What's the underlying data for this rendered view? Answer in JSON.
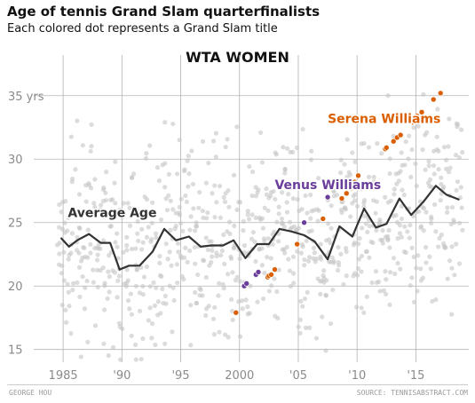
{
  "header": {
    "title": "Age of tennis Grand Slam quarterfinalists",
    "subtitle": "Each colored dot represents a Grand Slam title"
  },
  "footer": {
    "author": "GEORGE HOU",
    "source": "SOURCE: TENNISABSTRACT.COM"
  },
  "colors": {
    "background_dots": "#c4c4c4",
    "average_line": "#333333",
    "serena": "#d95f02",
    "venus": "#6a3d9a",
    "grid": "#b3b3b3"
  },
  "chart_data": {
    "type": "scatter",
    "title": "WTA WOMEN",
    "xlim": [
      1982.5,
      2019.5
    ],
    "ylim": [
      14,
      38.2
    ],
    "x_ticks": [
      1985,
      1990,
      1995,
      2000,
      2005,
      2010,
      2015
    ],
    "x_tick_labels": [
      "1985",
      "'90",
      "'95",
      "2000",
      "'05",
      "'10",
      "'15"
    ],
    "y_ticks": [
      15,
      20,
      25,
      30,
      35
    ],
    "y_tick_labels": [
      "15",
      "20",
      "25",
      "30",
      "35 yrs"
    ],
    "grid": true,
    "annotations": [
      {
        "text": "Average Age",
        "x": 1985.4,
        "y": 25.8,
        "color": "#333333"
      },
      {
        "text": "Venus Williams",
        "x": 2003,
        "y": 28,
        "color": "#6a3d9a"
      },
      {
        "text": "Serena Williams",
        "x": 2007.5,
        "y": 33.2,
        "color": "#d95f02"
      }
    ],
    "series": [
      {
        "name": "Average Age",
        "kind": "line",
        "x": [
          1984.8,
          1985.5,
          1986.2,
          1987.2,
          1988.2,
          1989.0,
          1989.8,
          1990.6,
          1991.5,
          1992.6,
          1993.6,
          1994.6,
          1995.7,
          1996.7,
          1997.6,
          1998.6,
          1999.5,
          2000.5,
          2001.5,
          2002.5,
          2003.4,
          2004.4,
          2005.5,
          2006.4,
          2007.5,
          2008.5,
          2009.6,
          2010.6,
          2011.6,
          2012.5,
          2013.6,
          2014.6,
          2015.6,
          2016.7,
          2017.6,
          2018.7
        ],
        "y": [
          23.8,
          23.1,
          23.6,
          24.1,
          23.4,
          23.4,
          21.3,
          21.6,
          21.6,
          22.7,
          24.5,
          23.6,
          23.9,
          23.1,
          23.2,
          23.2,
          23.6,
          22.2,
          23.3,
          23.3,
          24.5,
          24.3,
          24.0,
          23.5,
          22.1,
          24.7,
          23.9,
          26.1,
          24.6,
          24.9,
          26.9,
          25.6,
          26.6,
          27.9,
          27.2,
          26.8
        ]
      },
      {
        "name": "Serena Williams",
        "kind": "points",
        "x": [
          1999.7,
          2002.4,
          2002.5,
          2002.7,
          2003.0,
          2004.9,
          2007.1,
          2008.7,
          2009.1,
          2009.5,
          2009.8,
          2010.1,
          2012.4,
          2012.5,
          2013.1,
          2013.4,
          2013.7,
          2014.7,
          2015.1,
          2015.5,
          2016.5,
          2017.1
        ],
        "y": [
          17.9,
          20.7,
          20.8,
          20.9,
          21.3,
          23.3,
          25.3,
          26.9,
          27.3,
          27.7,
          28.2,
          28.7,
          30.8,
          30.9,
          31.4,
          31.7,
          31.9,
          32.9,
          33.4,
          33.7,
          34.7,
          35.2
        ]
      },
      {
        "name": "Venus Williams",
        "kind": "points",
        "x": [
          2000.4,
          2000.6,
          2001.4,
          2001.6,
          2005.5,
          2007.5,
          2008.5
        ],
        "y": [
          20.0,
          20.2,
          20.9,
          21.1,
          25.0,
          27.0,
          28.0
        ]
      }
    ]
  }
}
